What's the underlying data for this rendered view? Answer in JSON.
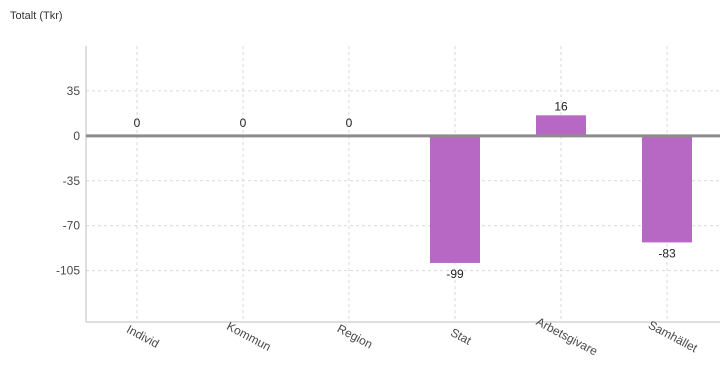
{
  "chart_data": {
    "type": "bar",
    "title": "Totalt (Tkr)",
    "xlabel": "",
    "ylabel": "",
    "categories": [
      "Individ",
      "Kommun",
      "Region",
      "Stat",
      "Arbetsgivare",
      "Samhället"
    ],
    "values": [
      0,
      0,
      0,
      -99,
      16,
      -83
    ],
    "data_labels": [
      "0",
      "0",
      "0",
      "-99",
      "16",
      "-83"
    ],
    "yticks": [
      35,
      0,
      -35,
      -70,
      -105
    ],
    "ytick_labels": [
      "35",
      "0",
      "-35",
      "-70",
      "-105"
    ],
    "ylim": [
      -145,
      70
    ],
    "grid": true,
    "legend": "none",
    "bar_color": "#b768c4"
  }
}
